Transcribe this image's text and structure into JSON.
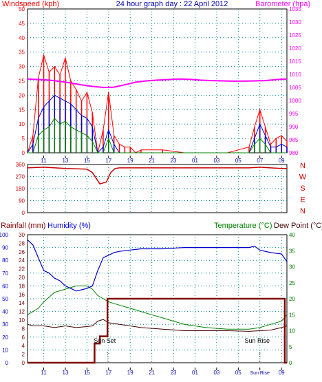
{
  "chart_data": [
    {
      "type": "line",
      "title": "24 hour graph day : 22 April 2012",
      "left_axis_label": "Windspeed (kph)",
      "right_axis_label": "Barometer (hpa)",
      "ylim_left": [
        0,
        50
      ],
      "ylim_right": [
        980,
        1035
      ],
      "y_ticks_left": [
        "0",
        "5",
        "10",
        "15",
        "20",
        "25",
        "30",
        "35",
        "40",
        "45",
        "50"
      ],
      "y_ticks_right": [
        "980",
        "985",
        "990",
        "995",
        "1000",
        "1005",
        "1010",
        "1015",
        "1020",
        "1025",
        "1030",
        "1035"
      ],
      "x_ticks": [
        "11",
        "13",
        "15",
        "17",
        "19",
        "21",
        "23",
        "01",
        "03",
        "05",
        "07",
        "09"
      ],
      "colors": {
        "gust": "#ff0000",
        "avg": "#0000cc",
        "min": "#008000",
        "baro": "#ff00ff"
      },
      "series": [
        {
          "name": "Barometer",
          "x": [
            9.5,
            10.5,
            11.5,
            12.5,
            13.5,
            14.5,
            15.5,
            16.5,
            17.5,
            18.5,
            19.5,
            20.5,
            21.5,
            22.5,
            23.5,
            24.5,
            25.5,
            26.5,
            27.5,
            28.5,
            29.5,
            30.5,
            31.5,
            32.5,
            33.5
          ],
          "values": [
            1008.2,
            1008.0,
            1007.8,
            1007.3,
            1006.7,
            1006.0,
            1005.4,
            1005.0,
            1005.1,
            1006.0,
            1007.0,
            1007.5,
            1007.8,
            1008.0,
            1008.2,
            1008.1,
            1007.8,
            1007.6,
            1007.5,
            1007.4,
            1007.4,
            1007.5,
            1007.6,
            1008.0,
            1008.2
          ]
        },
        {
          "name": "Gust",
          "x": [
            9.5,
            10.0,
            10.5,
            11.0,
            11.5,
            12.0,
            12.5,
            13.0,
            13.5,
            14.0,
            14.5,
            15.0,
            15.5,
            16.0,
            16.5,
            17.0,
            17.5,
            18.0,
            18.5,
            19.0,
            19.5,
            20.0,
            22.0,
            24.0,
            26.0,
            28.0,
            30.0,
            30.5,
            31.0,
            31.5,
            32.0,
            32.5,
            33.0,
            33.5
          ],
          "values": [
            0,
            6,
            26,
            34,
            28,
            30,
            27,
            33,
            25,
            22,
            18,
            21,
            14,
            0,
            8,
            21,
            6,
            3,
            2,
            2,
            0,
            1,
            1,
            0,
            0,
            0,
            2,
            9,
            15,
            9,
            3,
            5,
            6,
            4
          ]
        },
        {
          "name": "Average",
          "x": [
            9.5,
            10.0,
            10.5,
            11.0,
            11.5,
            12.0,
            12.5,
            13.0,
            13.5,
            14.0,
            14.5,
            15.0,
            15.5,
            16.0,
            16.5,
            17.0,
            17.5,
            18.0,
            19.0,
            20.0,
            22.0,
            24.0,
            26.0,
            28.0,
            30.0,
            30.5,
            31.0,
            31.5,
            32.0,
            32.5,
            33.0,
            33.5
          ],
          "values": [
            0,
            3,
            12,
            16,
            18,
            20,
            19,
            18,
            17,
            15,
            13,
            12,
            9,
            0,
            2,
            8,
            3,
            0,
            0,
            0,
            0,
            0,
            0,
            0,
            0,
            5,
            10,
            6,
            2,
            2,
            3,
            2
          ]
        },
        {
          "name": "Minimum",
          "x": [
            9.5,
            10.0,
            10.5,
            11.0,
            11.5,
            12.0,
            12.5,
            13.0,
            13.5,
            14.0,
            14.5,
            15.0,
            15.5,
            16.0,
            16.5,
            17.0,
            17.5,
            18.0,
            30.0,
            30.5,
            31.0,
            31.5,
            32.0,
            33.5
          ],
          "values": [
            0,
            0,
            6,
            8,
            9,
            12,
            10,
            11,
            9,
            8,
            7,
            6,
            4,
            0,
            0,
            5,
            0,
            0,
            0,
            3,
            5,
            3,
            0,
            0
          ]
        }
      ]
    },
    {
      "type": "line",
      "title": "",
      "ylim": [
        0,
        360
      ],
      "y_ticks": [
        "0",
        "90",
        "180",
        "270",
        "360"
      ],
      "compass": [
        "N",
        "W",
        "S",
        "E",
        "N"
      ],
      "color": "#cc0000",
      "series": [
        {
          "name": "Wind direction",
          "x": [
            9.5,
            11,
            13,
            15,
            15.5,
            16.2,
            16.8,
            17.2,
            17.6,
            18,
            20,
            22,
            24,
            26,
            28,
            30,
            31,
            32,
            33,
            33.5
          ],
          "values": [
            335,
            340,
            330,
            325,
            300,
            215,
            230,
            300,
            330,
            335,
            335,
            335,
            335,
            335,
            335,
            335,
            340,
            335,
            330,
            330
          ]
        }
      ]
    },
    {
      "type": "line",
      "title": "",
      "left_axis_label": "Rainfall (mm)",
      "left_axis_label2": "Humidity (%)",
      "right_axis_label": "Temperature (°C)",
      "right_axis_label2": "Dew Point (°C)",
      "y_ticks_hum": [
        "0",
        "10",
        "20",
        "30",
        "40",
        "50",
        "60",
        "70",
        "80",
        "90",
        "100"
      ],
      "y_ticks_rain": [
        "0",
        "2",
        "4",
        "6",
        "8",
        "10",
        "12",
        "14",
        "16",
        "18",
        "20",
        "22",
        "24",
        "26",
        "28",
        "30"
      ],
      "y_ticks_temp": [
        "0",
        "5",
        "10",
        "15",
        "20",
        "25",
        "30",
        "35",
        "40"
      ],
      "ylim_hum": [
        0,
        100
      ],
      "ylim_rain": [
        0,
        30
      ],
      "ylim_temp": [
        0,
        40
      ],
      "x_ticks": [
        "11",
        "13",
        "15",
        "17",
        "19",
        "21",
        "23",
        "01",
        "03",
        "05",
        "Sun Rise",
        "09"
      ],
      "annotations": [
        "Sun Set",
        "Sun Rise"
      ],
      "colors": {
        "humidity": "#0000cc",
        "rain": "#800000",
        "temp": "#008000",
        "dew": "#400000"
      },
      "series": [
        {
          "name": "Humidity",
          "x": [
            9.5,
            10,
            10.5,
            11,
            11.5,
            12,
            12.5,
            13,
            13.5,
            14,
            14.5,
            15,
            15.5,
            16,
            16.5,
            17,
            17.5,
            18,
            19,
            20,
            22,
            24,
            26,
            28,
            30,
            30.5,
            31,
            32,
            33,
            33.5
          ],
          "values": [
            96,
            92,
            82,
            72,
            70,
            66,
            64,
            60,
            58,
            56,
            57,
            58,
            60,
            72,
            82,
            84,
            86,
            87,
            88,
            89,
            89,
            90,
            90,
            90,
            90,
            91,
            88,
            86,
            85,
            79
          ]
        },
        {
          "name": "Temperature",
          "x": [
            9.5,
            10,
            10.5,
            11,
            12,
            13,
            14,
            15,
            15.5,
            16,
            16.5,
            17,
            18,
            19,
            20,
            21,
            22,
            23,
            24,
            26,
            28,
            30,
            31,
            32,
            33,
            33.5
          ],
          "values": [
            15,
            16,
            17,
            19,
            22,
            23,
            24,
            24,
            23,
            21,
            20,
            19,
            18,
            17,
            16,
            15,
            14,
            13,
            12,
            11,
            10.5,
            10.5,
            11,
            12,
            13,
            15
          ]
        },
        {
          "name": "Dew Point",
          "x": [
            9.5,
            10,
            11,
            12,
            13,
            14,
            15,
            15.5,
            16,
            16.5,
            17,
            18,
            19,
            20,
            22,
            24,
            26,
            28,
            30,
            31,
            32,
            33,
            33.5
          ],
          "values": [
            12,
            11.5,
            11.5,
            11,
            11.5,
            11,
            11.3,
            11.5,
            13,
            13.5,
            12.5,
            12,
            11.5,
            11,
            10.5,
            10,
            10,
            10,
            9.8,
            10,
            10.2,
            11,
            11.5
          ]
        },
        {
          "name": "Rainfall",
          "x": [
            9.5,
            15.7,
            15.7,
            16.2,
            16.2,
            16.9,
            16.9,
            33.3,
            33.3,
            33.5
          ],
          "values": [
            0,
            0,
            4.5,
            4.5,
            6.2,
            6.2,
            15,
            15,
            0,
            0
          ]
        }
      ]
    }
  ]
}
